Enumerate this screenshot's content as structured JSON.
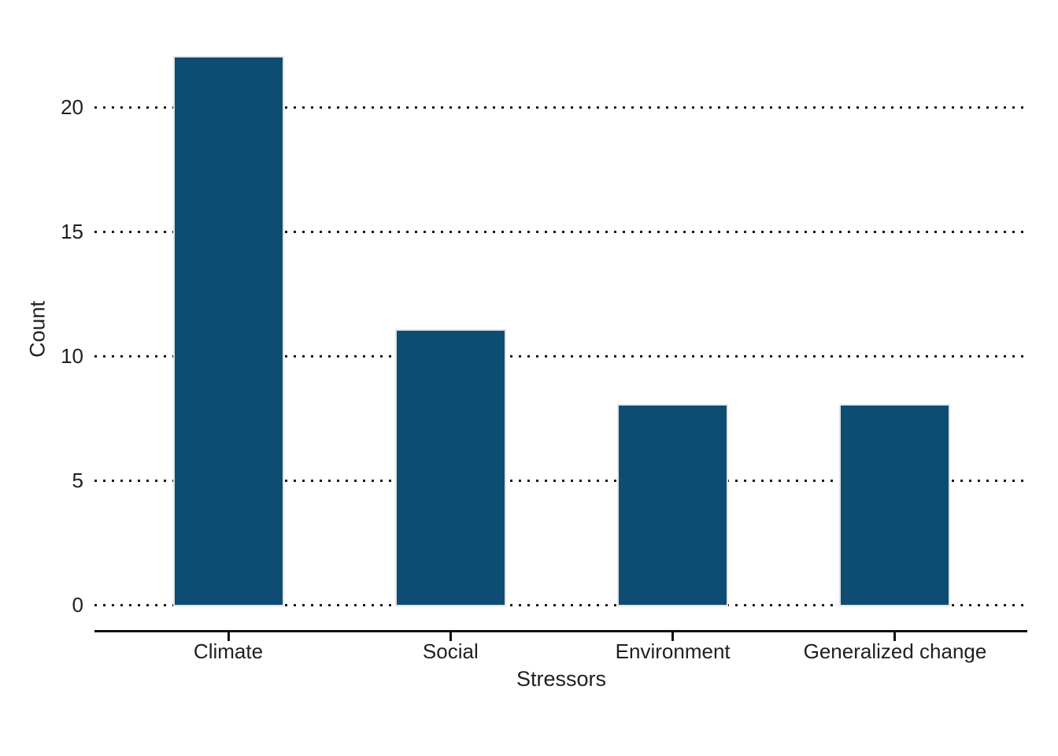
{
  "chart_data": {
    "type": "bar",
    "title": "",
    "categories": [
      "Climate",
      "Social",
      "Environment",
      "Generalized change"
    ],
    "values": [
      22,
      11,
      8,
      8
    ],
    "xlabel": "Stressors",
    "ylabel": "Count",
    "yticks": [
      0,
      5,
      10,
      15,
      20
    ],
    "ylim": [
      0,
      23.7
    ],
    "grid": "horizontal dotted lines at each y tick",
    "legend": "none",
    "colors": {
      "bar_fill": "#0d4d73",
      "bar_edge": "#e4e4e4",
      "text": "#1f1f1f",
      "axis_line": "#111111",
      "gridline": "#191919",
      "background": "#ffffff"
    }
  }
}
